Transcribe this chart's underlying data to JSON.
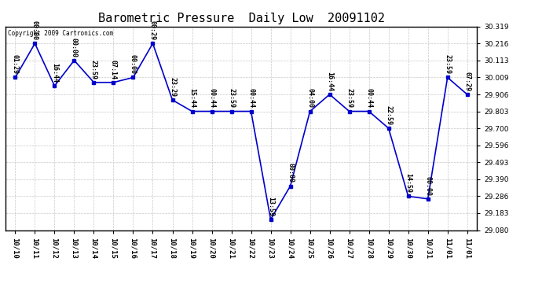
{
  "title": "Barometric Pressure  Daily Low  20091102",
  "copyright": "Copyright 2009 Cartronics.com",
  "x_labels": [
    "10/10",
    "10/11",
    "10/12",
    "10/13",
    "10/14",
    "10/15",
    "10/16",
    "10/17",
    "10/18",
    "10/19",
    "10/20",
    "10/21",
    "10/22",
    "10/23",
    "10/24",
    "10/25",
    "10/26",
    "10/27",
    "10/28",
    "10/29",
    "10/30",
    "10/31",
    "11/01",
    "11/01"
  ],
  "y_values": [
    30.009,
    30.216,
    29.958,
    30.113,
    29.979,
    29.979,
    30.009,
    30.216,
    29.872,
    29.803,
    29.803,
    29.803,
    29.803,
    29.145,
    29.348,
    29.803,
    29.906,
    29.803,
    29.803,
    29.7,
    29.286,
    29.27,
    30.009,
    29.906
  ],
  "point_labels": [
    "01:29",
    "00:00",
    "16:44",
    "00:00",
    "23:59",
    "07:14",
    "00:00",
    "00:29",
    "23:29",
    "15:44",
    "00:44",
    "23:59",
    "00:44",
    "13:59",
    "00:00",
    "04:00",
    "16:44",
    "23:59",
    "00:44",
    "22:59",
    "14:59",
    "00:00",
    "23:59",
    "07:29"
  ],
  "ylim": [
    29.08,
    30.319
  ],
  "y_ticks": [
    29.08,
    29.183,
    29.286,
    29.39,
    29.493,
    29.596,
    29.7,
    29.803,
    29.906,
    30.009,
    30.113,
    30.216,
    30.319
  ],
  "line_color": "#0000cc",
  "marker_color": "#0000cc",
  "bg_color": "#ffffff",
  "grid_color": "#c8c8c8",
  "title_fontsize": 11,
  "label_fontsize": 6.5,
  "annot_fontsize": 6.0
}
